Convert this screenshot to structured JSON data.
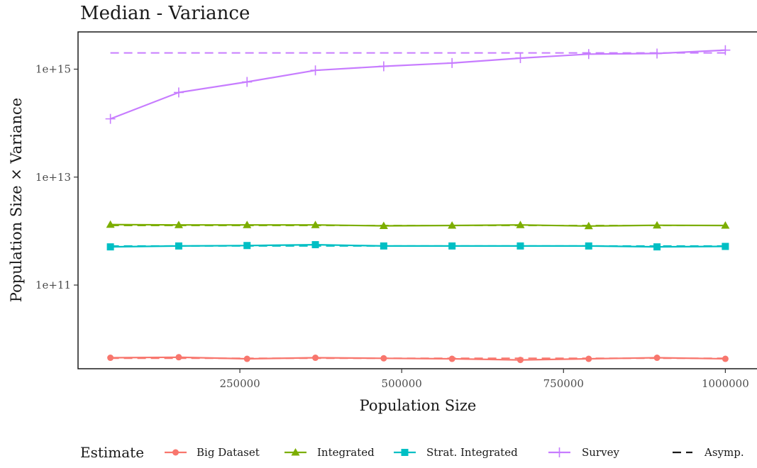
{
  "chart_data": {
    "type": "line",
    "title": "Median - Variance",
    "xlabel": "Population Size",
    "ylabel": "Population Size × Variance",
    "y_scale": "log10",
    "xlim": [
      0,
      1050000
    ],
    "ylim_log10": [
      9.45,
      15.69
    ],
    "x_ticks": [
      250000,
      500000,
      750000,
      1000000
    ],
    "x_tick_labels": [
      "250000",
      "500000",
      "750000",
      "1000000"
    ],
    "y_ticks": [
      100000000000,
      10000000000000,
      1000000000000000
    ],
    "y_tick_labels": [
      "1e+11",
      "1e+13",
      "1e+15"
    ],
    "grid": false,
    "legend_position": "bottom",
    "legend_title": "Estimate",
    "x": [
      50000,
      155556,
      261111,
      366667,
      472222,
      577778,
      683333,
      788889,
      894444,
      1000000
    ],
    "series": [
      {
        "name": "Big Dataset",
        "color": "#F8766D",
        "marker": "circle",
        "values": [
          4500000000.0,
          4600000000.0,
          4300000000.0,
          4500000000.0,
          4400000000.0,
          4300000000.0,
          4100000000.0,
          4300000000.0,
          4500000000.0,
          4300000000.0
        ]
      },
      {
        "name": "Integrated",
        "color": "#7CAE00",
        "marker": "triangle",
        "values": [
          1320000000000.0,
          1300000000000.0,
          1300000000000.0,
          1300000000000.0,
          1250000000000.0,
          1270000000000.0,
          1300000000000.0,
          1240000000000.0,
          1280000000000.0,
          1270000000000.0
        ]
      },
      {
        "name": "Strat. Integrated",
        "color": "#00BFC4",
        "marker": "square",
        "values": [
          510000000000.0,
          530000000000.0,
          540000000000.0,
          560000000000.0,
          530000000000.0,
          530000000000.0,
          530000000000.0,
          530000000000.0,
          510000000000.0,
          520000000000.0
        ]
      },
      {
        "name": "Survey",
        "color": "#C77CFF",
        "marker": "plus",
        "values": [
          120000000000000.0,
          370000000000000.0,
          580000000000000.0,
          950000000000000.0,
          1130000000000000.0,
          1300000000000000.0,
          1600000000000000.0,
          1900000000000000.0,
          1950000000000000.0,
          2250000000000000.0
        ]
      }
    ],
    "asymptotic": {
      "name": "Asymp.",
      "linestyle": "dashed",
      "values": {
        "Big Dataset": [
          4400000000.0,
          4400000000.0,
          4400000000.0,
          4400000000.0,
          4400000000.0,
          4400000000.0,
          4400000000.0,
          4400000000.0,
          4400000000.0,
          4400000000.0
        ],
        "Integrated": [
          1270000000000.0,
          1270000000000.0,
          1270000000000.0,
          1270000000000.0,
          1270000000000.0,
          1270000000000.0,
          1270000000000.0,
          1270000000000.0,
          1270000000000.0,
          1270000000000.0
        ],
        "Strat. Integrated": [
          530000000000.0,
          530000000000.0,
          530000000000.0,
          530000000000.0,
          530000000000.0,
          530000000000.0,
          530000000000.0,
          530000000000.0,
          530000000000.0,
          530000000000.0
        ],
        "Survey": [
          2000000000000000.0,
          2000000000000000.0,
          2000000000000000.0,
          2000000000000000.0,
          2000000000000000.0,
          2000000000000000.0,
          2000000000000000.0,
          2000000000000000.0,
          2000000000000000.0,
          2000000000000000.0
        ]
      }
    }
  }
}
